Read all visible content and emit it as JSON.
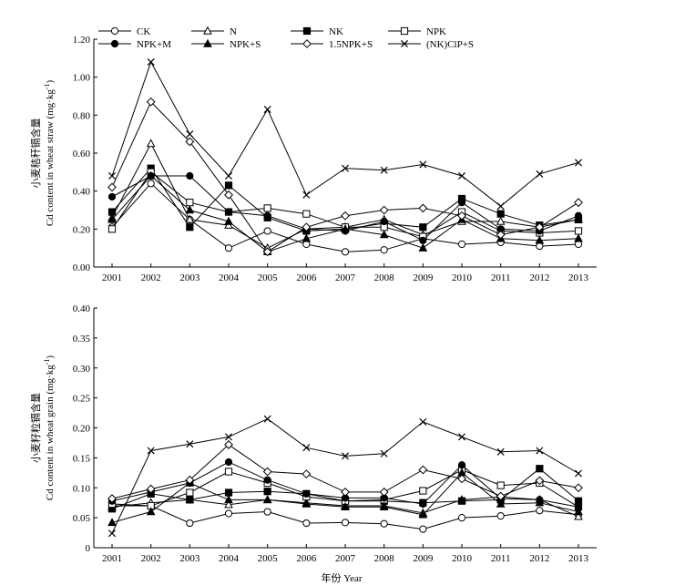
{
  "figure": {
    "cut_caption": "",
    "shared_xlabel": "年份 Year"
  },
  "chart_data": [
    {
      "type": "line",
      "name": "straw",
      "ylabel_cn": "小麦秸秆镉含量",
      "ylabel_en": "Cd content in wheat straw (mg·kg",
      "ylabel_sup": "-1",
      "ylabel_end": ")",
      "ylim": [
        0,
        1.2
      ],
      "yticks": [
        "0.00",
        "0.20",
        "0.40",
        "0.60",
        "0.80",
        "1.00",
        "1.20"
      ],
      "x": [
        "2001",
        "2002",
        "2003",
        "2004",
        "2005",
        "2006",
        "2007",
        "2008",
        "2009",
        "2010",
        "2011",
        "2012",
        "2013"
      ],
      "legend": "top, two rows of four",
      "series": [
        {
          "name": "CK",
          "marker": "open-circle",
          "values": [
            0.21,
            0.44,
            0.25,
            0.1,
            0.19,
            0.12,
            0.08,
            0.09,
            0.15,
            0.12,
            0.13,
            0.11,
            0.12
          ]
        },
        {
          "name": "N",
          "marker": "open-triangle",
          "values": [
            0.26,
            0.65,
            0.25,
            0.22,
            0.1,
            0.2,
            0.21,
            0.25,
            0.17,
            0.24,
            0.24,
            0.21,
            0.25
          ]
        },
        {
          "name": "NK",
          "marker": "filled-square",
          "values": [
            0.29,
            0.52,
            0.21,
            0.43,
            0.26,
            0.19,
            0.2,
            0.23,
            0.21,
            0.36,
            0.28,
            0.22,
            0.25
          ]
        },
        {
          "name": "NPK",
          "marker": "open-square",
          "values": [
            0.2,
            0.5,
            0.34,
            0.29,
            0.31,
            0.28,
            0.21,
            0.21,
            0.16,
            0.29,
            0.19,
            0.18,
            0.19
          ]
        },
        {
          "name": "NPK+M",
          "marker": "filled-circle",
          "values": [
            0.37,
            0.48,
            0.48,
            0.29,
            0.27,
            0.2,
            0.19,
            0.24,
            0.14,
            0.34,
            0.2,
            0.19,
            0.27
          ]
        },
        {
          "name": "NPK+S",
          "marker": "filled-triangle",
          "values": [
            0.25,
            0.48,
            0.3,
            0.24,
            0.08,
            0.15,
            0.2,
            0.17,
            0.1,
            0.25,
            0.15,
            0.14,
            0.15
          ]
        },
        {
          "name": "1.5NPK+S",
          "marker": "open-diamond",
          "values": [
            0.42,
            0.87,
            0.66,
            0.38,
            0.08,
            0.21,
            0.27,
            0.3,
            0.31,
            0.27,
            0.17,
            0.21,
            0.34
          ]
        },
        {
          "name": "(NK)ClP+S",
          "marker": "cross",
          "values": [
            0.48,
            1.08,
            0.7,
            0.48,
            0.83,
            0.38,
            0.52,
            0.51,
            0.54,
            0.48,
            0.32,
            0.49,
            0.55
          ]
        }
      ]
    },
    {
      "type": "line",
      "name": "grain",
      "ylabel_cn": "小麦籽粒镉含量",
      "ylabel_en": "Cd content in wheat grain (mg·kg",
      "ylabel_sup": "-1",
      "ylabel_end": ")",
      "ylim": [
        0,
        0.4
      ],
      "yticks": [
        "0",
        "0.05",
        "0.10",
        "0.15",
        "0.20",
        "0.25",
        "0.30",
        "0.35",
        "0.40"
      ],
      "x": [
        "2001",
        "2002",
        "2003",
        "2004",
        "2005",
        "2006",
        "2007",
        "2008",
        "2009",
        "2010",
        "2011",
        "2012",
        "2013"
      ],
      "series": [
        {
          "name": "CK",
          "marker": "open-circle",
          "values": [
            0.07,
            0.07,
            0.041,
            0.057,
            0.06,
            0.041,
            0.042,
            0.04,
            0.031,
            0.05,
            0.053,
            0.062,
            0.055
          ]
        },
        {
          "name": "N",
          "marker": "open-triangle",
          "values": [
            0.068,
            0.075,
            0.08,
            0.072,
            0.08,
            0.075,
            0.07,
            0.07,
            0.058,
            0.08,
            0.085,
            0.08,
            0.052
          ]
        },
        {
          "name": "NK",
          "marker": "filled-square",
          "values": [
            0.065,
            0.09,
            0.08,
            0.092,
            0.094,
            0.09,
            0.078,
            0.078,
            0.075,
            0.078,
            0.08,
            0.132,
            0.078
          ]
        },
        {
          "name": "NPK",
          "marker": "open-square",
          "values": [
            0.073,
            0.07,
            0.092,
            0.127,
            0.108,
            0.085,
            0.078,
            0.08,
            0.095,
            0.13,
            0.104,
            0.108,
            0.068
          ]
        },
        {
          "name": "NPK+M",
          "marker": "filled-circle",
          "values": [
            0.078,
            0.093,
            0.108,
            0.143,
            0.113,
            0.09,
            0.083,
            0.083,
            0.073,
            0.138,
            0.082,
            0.08,
            0.068
          ]
        },
        {
          "name": "NPK+S",
          "marker": "filled-triangle",
          "values": [
            0.042,
            0.06,
            0.108,
            0.08,
            0.08,
            0.073,
            0.068,
            0.068,
            0.055,
            0.125,
            0.073,
            0.075,
            0.06
          ]
        },
        {
          "name": "1.5NPK+S",
          "marker": "open-diamond",
          "values": [
            0.082,
            0.098,
            0.113,
            0.172,
            0.127,
            0.123,
            0.093,
            0.093,
            0.13,
            0.115,
            0.086,
            0.112,
            0.1
          ]
        },
        {
          "name": "(NK)ClP+S",
          "marker": "cross",
          "values": [
            0.024,
            0.162,
            0.173,
            0.185,
            0.215,
            0.167,
            0.153,
            0.157,
            0.21,
            0.185,
            0.16,
            0.162,
            0.124
          ]
        }
      ]
    }
  ]
}
